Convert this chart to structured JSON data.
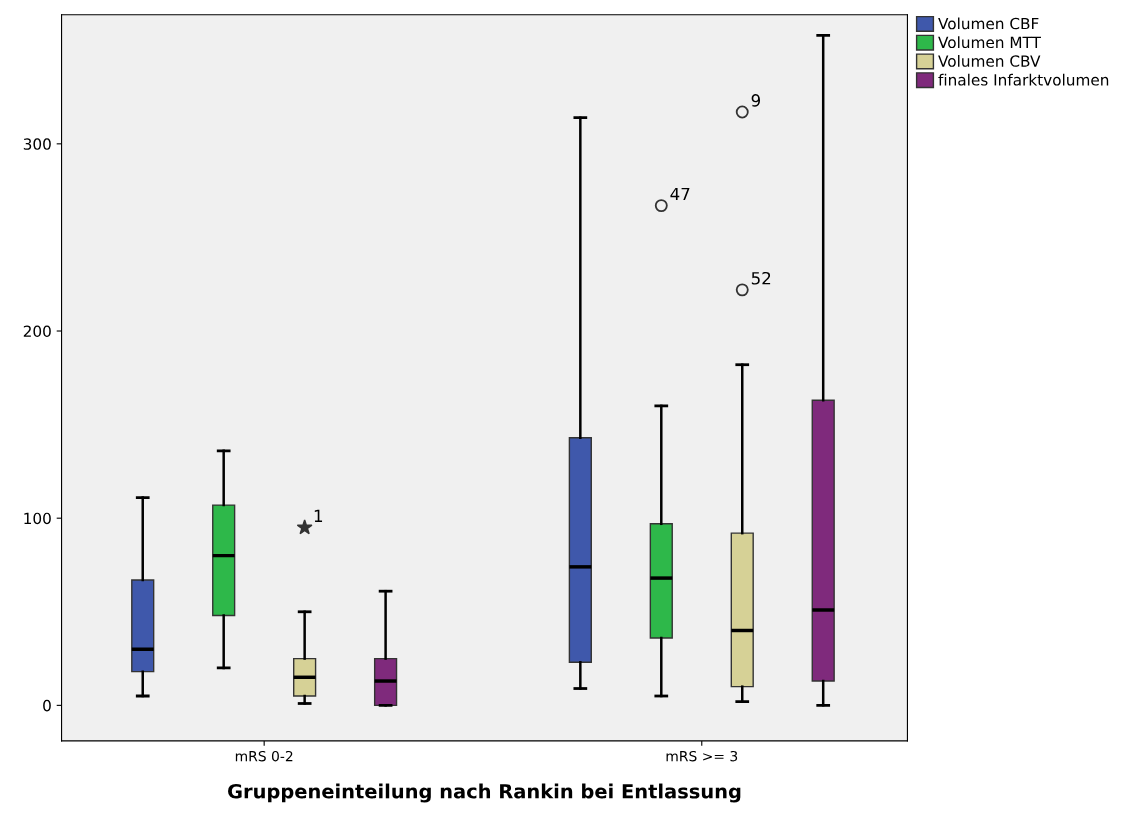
{
  "chart_data": {
    "type": "box",
    "xlabel": "Gruppeneinteilung nach Rankin bei Entlassung",
    "categories": [
      "mRS 0-2",
      "mRS >= 3"
    ],
    "ylim": [
      -19,
      369
    ],
    "yticks": [
      0,
      100,
      200,
      300
    ],
    "grid": false,
    "legend": "top right",
    "series": [
      {
        "name": "Volumen CBF",
        "color": "#3f58ab",
        "boxes": [
          {
            "low": 5,
            "q1": 18,
            "median": 30,
            "q3": 67,
            "high": 111
          },
          {
            "low": 9,
            "q1": 23,
            "median": 74,
            "q3": 143,
            "high": 314
          }
        ]
      },
      {
        "name": "Volumen MTT",
        "color": "#2eb84a",
        "boxes": [
          {
            "low": 20,
            "q1": 48,
            "median": 80,
            "q3": 107,
            "high": 136
          },
          {
            "low": 5,
            "q1": 36,
            "median": 68,
            "q3": 97,
            "high": 160,
            "outliers": [
              267
            ]
          }
        ]
      },
      {
        "name": "Volumen CBV",
        "color": "#d6d196",
        "boxes": [
          {
            "low": 1,
            "q1": 5,
            "median": 15,
            "q3": 25,
            "high": 50,
            "outliers": [
              95
            ]
          },
          {
            "low": 2,
            "q1": 10,
            "median": 40,
            "q3": 92,
            "high": 182,
            "outliers": [
              222,
              317
            ]
          }
        ]
      },
      {
        "name": "finales Infarktvolumen",
        "color": "#7f2a7c",
        "boxes": [
          {
            "low": 0,
            "q1": 0,
            "median": 13,
            "q3": 25,
            "high": 61
          },
          {
            "low": 0,
            "q1": 13,
            "median": 51,
            "q3": 163,
            "high": 358
          }
        ]
      }
    ],
    "annotations": [
      "47",
      "1",
      "52",
      "9"
    ]
  }
}
